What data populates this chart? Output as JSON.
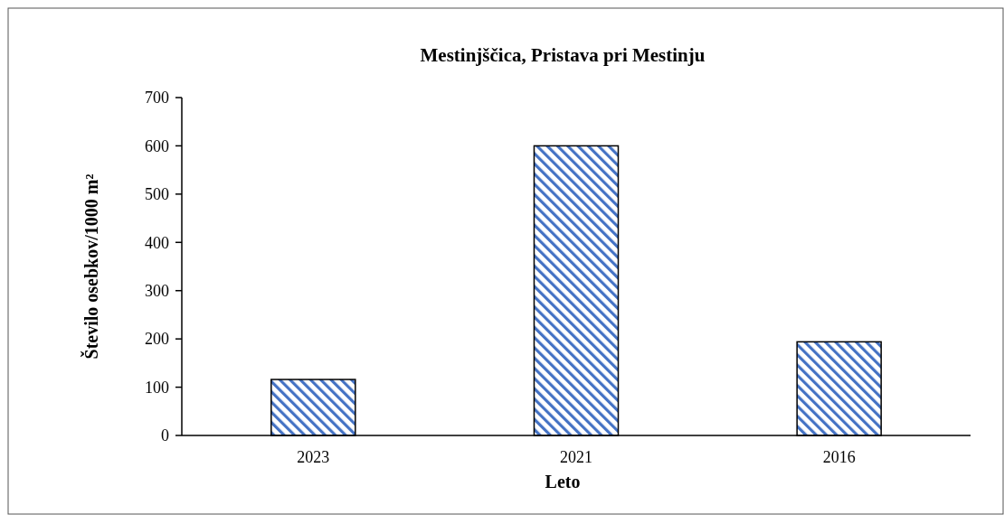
{
  "chart_data": {
    "type": "bar",
    "title": "Mestinjščica, Pristava pri Mestinju",
    "xlabel": "Leto",
    "ylabel": "Število osebkov/1000 m²",
    "categories": [
      "2023",
      "2021",
      "2016"
    ],
    "values": [
      116,
      600,
      194
    ],
    "color": "#4472c4",
    "ylim": [
      0,
      700
    ],
    "yticks": [
      0,
      100,
      200,
      300,
      400,
      500,
      600,
      700
    ],
    "grid": false
  }
}
